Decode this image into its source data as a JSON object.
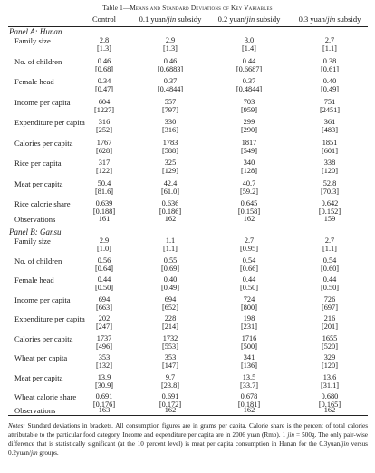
{
  "title": {
    "prefix": "Table 1—",
    "text": "Means and Standard Deviations of Key Variables"
  },
  "columns": [
    {
      "pre": "Control",
      "it": "",
      "post": ""
    },
    {
      "pre": "0.1 yuan/",
      "it": "jin",
      "post": " subsidy"
    },
    {
      "pre": "0.2 yuan/",
      "it": "jin",
      "post": " subsidy"
    },
    {
      "pre": "0.3 yuan/",
      "it": "jin",
      "post": " subsidy"
    }
  ],
  "panelA": {
    "label": "Panel A: Hunan",
    "rows": [
      {
        "label": "Family size",
        "mean": [
          "2.8",
          "2.9",
          "3.0",
          "2.7"
        ],
        "sd": [
          "[1.3]",
          "[1.3]",
          "[1.4]",
          "[1.1]"
        ]
      },
      {
        "label": "No. of children",
        "mean": [
          "0.46",
          "0.46",
          "0.44",
          "0.38"
        ],
        "sd": [
          "[0.68]",
          "[0.6883]",
          "[0.6687]",
          "[0.61]"
        ]
      },
      {
        "label": "Female head",
        "mean": [
          "0.34",
          "0.37",
          "0.37",
          "0.40"
        ],
        "sd": [
          "[0.47]",
          "[0.4844]",
          "[0.4844]",
          "[0.49]"
        ]
      },
      {
        "label": "Income per capita",
        "mean": [
          "604",
          "557",
          "703",
          "751"
        ],
        "sd": [
          "[1227]",
          "[797]",
          "[959]",
          "[2451]"
        ]
      },
      {
        "label": "Expenditure per capita",
        "mean": [
          "316",
          "330",
          "299",
          "361"
        ],
        "sd": [
          "[252]",
          "[316]",
          "[290]",
          "[483]"
        ]
      },
      {
        "label": "Calories per capita",
        "mean": [
          "1767",
          "1783",
          "1817",
          "1851"
        ],
        "sd": [
          "[628]",
          "[588]",
          "[549]",
          "[601]"
        ]
      },
      {
        "label": "Rice per capita",
        "mean": [
          "317",
          "325",
          "340",
          "338"
        ],
        "sd": [
          "[122]",
          "[129]",
          "[128]",
          "[120]"
        ]
      },
      {
        "label": "Meat per capita",
        "mean": [
          "50.4",
          "42.4",
          "40.7",
          "52.8"
        ],
        "sd": [
          "[81.6]",
          "[61.0]",
          "[59.2]",
          "[70.3]"
        ]
      },
      {
        "label": "Rice calorie share",
        "mean": [
          "0.639",
          "0.636",
          "0.645",
          "0.642"
        ],
        "sd": [
          "[0.188]",
          "[0.186]",
          "[0.158]",
          "[0.152]"
        ]
      }
    ],
    "observations": {
      "label": "Observations",
      "values": [
        "161",
        "162",
        "162",
        "159"
      ]
    }
  },
  "panelB": {
    "label": "Panel B: Gansu",
    "rows": [
      {
        "label": "Family size",
        "mean": [
          "2.9",
          "1.1",
          "2.7",
          "2.7"
        ],
        "sd": [
          "[1.0]",
          "[1.1]",
          "[0.95]",
          "[1.1]"
        ]
      },
      {
        "label": "No. of children",
        "mean": [
          "0.56",
          "0.55",
          "0.54",
          "0.54"
        ],
        "sd": [
          "[0.64]",
          "[0.69]",
          "[0.66]",
          "[0.60]"
        ]
      },
      {
        "label": "Female head",
        "mean": [
          "0.44",
          "0.40",
          "0.44",
          "0.44"
        ],
        "sd": [
          "[0.50]",
          "[0.49]",
          "[0.50]",
          "[0.50]"
        ]
      },
      {
        "label": "Income per capita",
        "mean": [
          "694",
          "694",
          "724",
          "726"
        ],
        "sd": [
          "[663]",
          "[652]",
          "[800]",
          "[697]"
        ]
      },
      {
        "label": "Expenditure per capita",
        "mean": [
          "202",
          "228",
          "198",
          "216"
        ],
        "sd": [
          "[247]",
          "[214]",
          "[231]",
          "[201]"
        ]
      },
      {
        "label": "Calories per capita",
        "mean": [
          "1737",
          "1732",
          "1716",
          "1655"
        ],
        "sd": [
          "[496]",
          "[553]",
          "[500]",
          "[520]"
        ]
      },
      {
        "label": "Wheat per capita",
        "mean": [
          "353",
          "353",
          "341",
          "329"
        ],
        "sd": [
          "[132]",
          "[147]",
          "[136]",
          "[120]"
        ]
      },
      {
        "label": "Meat per capita",
        "mean": [
          "13.9",
          "9.7",
          "13.5",
          "13.6"
        ],
        "sd": [
          "[30.9]",
          "[23.8]",
          "[33.7]",
          "[31.1]"
        ]
      },
      {
        "label": "Wheat calorie share",
        "mean": [
          "0.691",
          "0.691",
          "0.678",
          "0.680"
        ],
        "sd": [
          "[0.176]",
          "[0.172]",
          "[0.181]",
          "[0.165]"
        ]
      }
    ],
    "observations": {
      "label": "Observations",
      "values": [
        "163",
        "162",
        "162",
        "162"
      ]
    }
  },
  "notes": {
    "label": "Notes:",
    "s1": " Standard deviations in brackets. All consumption figures are in grams per capita. Calorie share is the percent of total calories attributable to the particular food category. Income and expenditure per capita are in 2006 yuan (Rmb). 1 ",
    "jin1": "jin",
    "s2": " = 500g. The only pair-wise difference that is statistically significant (at the 10 percent level) is meat per capita consumption in Hunan for the 0.3yuan/",
    "jin2": "jin",
    "s3": " versus 0.2yuan/",
    "jin3": "jin",
    "s4": " groups."
  }
}
